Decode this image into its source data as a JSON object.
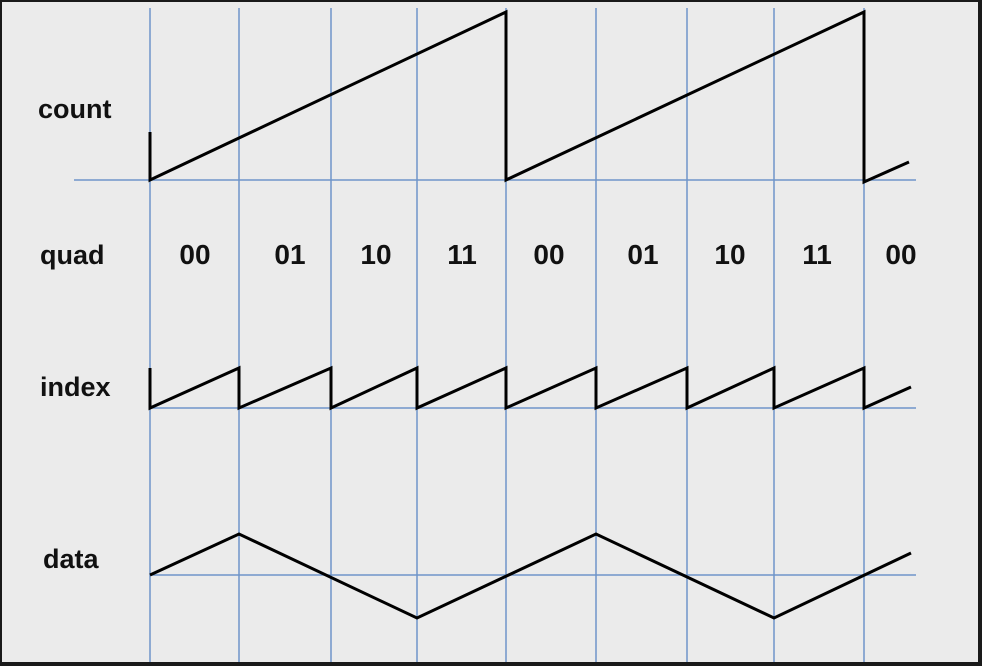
{
  "labels": {
    "count": "count",
    "quad": "quad",
    "index": "index",
    "data": "data"
  },
  "quad_values": [
    "00",
    "01",
    "10",
    "11",
    "00",
    "01",
    "10",
    "11",
    "00"
  ],
  "colors": {
    "grid": "#6f95c9",
    "waveform": "#000000",
    "text": "#111111",
    "background": "#ebebeb"
  }
}
